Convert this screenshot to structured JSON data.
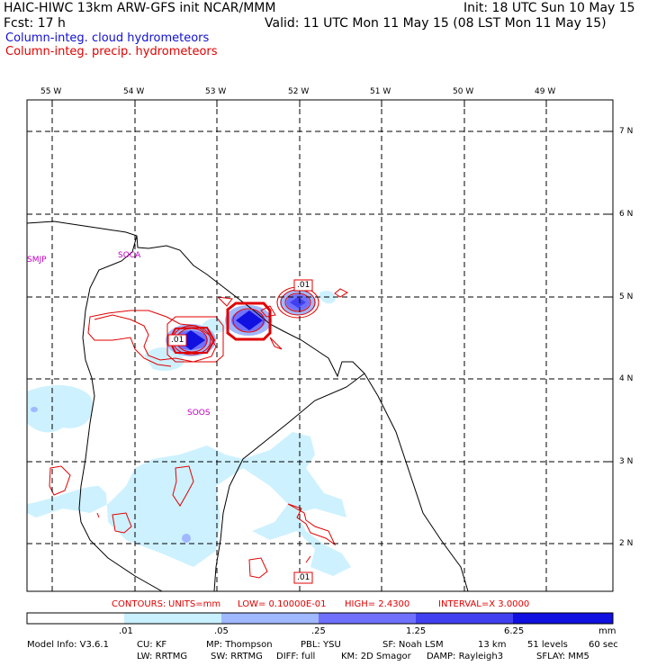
{
  "header": {
    "line1_left": "HAIC-HIWC 13km ARW-GFS init    NCAR/MMM",
    "line1_right": "Init: 18 UTC Sun 10 May 15",
    "line2_left": "Fcst:    17 h",
    "line2_right": "Valid: 11 UTC Mon 11 May 15 (08 LST Mon 11 May 15)"
  },
  "legend": {
    "cloud": "Column-integ. cloud hydrometeors",
    "precip": "Column-integ. precip. hydrometeors",
    "colors": {
      "cloud": "#1010d0",
      "precip": "#e00000"
    }
  },
  "map": {
    "lon_labels": [
      "55 W",
      "54 W",
      "53 W",
      "52 W",
      "51 W",
      "50 W",
      "49 W"
    ],
    "lat_labels": [
      "7 N",
      "6 N",
      "5 N",
      "4 N",
      "3 N",
      "2 N"
    ],
    "stations": [
      "SMJP",
      "SOCA",
      "SOOS"
    ],
    "contour_labels": [
      ".01",
      ".01",
      ".01"
    ]
  },
  "contour_info": {
    "contours": "CONTOURS:",
    "units": "UNITS=mm",
    "low": "LOW= 0.10000E-01",
    "high": "HIGH=   2.4300",
    "interval": "INTERVAL=X   3.0000"
  },
  "colorbar": {
    "ticks": [
      ".01",
      ".05",
      ".25",
      "1.25",
      "6.25"
    ],
    "unit": "mm",
    "colors": [
      "#ffffff",
      "#c8f0ff",
      "#a0b8ff",
      "#7070ff",
      "#4040f0",
      "#1010e0"
    ]
  },
  "footer": {
    "line1": [
      "Model Info: V3.6.1",
      "CU: KF",
      "MP: Thompson",
      "PBL: YSU",
      "SF: Noah LSM",
      "13 km",
      "51 levels",
      "60 sec"
    ],
    "line2": [
      "LW: RRTMG",
      "SW: RRTMG",
      "DIFF: full",
      "KM: 2D Smagor",
      "DAMP: Rayleigh3",
      "SFLAY: MM5"
    ]
  }
}
